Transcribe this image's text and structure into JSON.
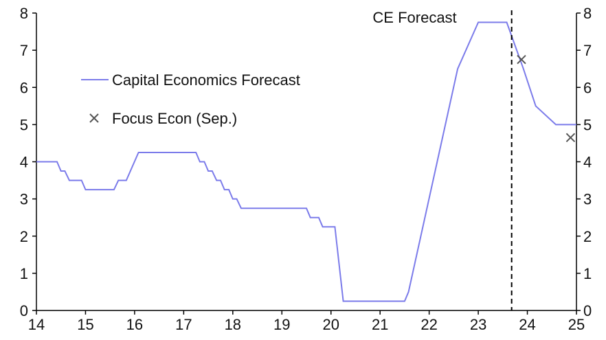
{
  "chart_data": {
    "type": "line",
    "x_range": [
      14,
      25
    ],
    "ylim": [
      0,
      8
    ],
    "x_ticks": [
      "14",
      "15",
      "16",
      "17",
      "18",
      "19",
      "20",
      "21",
      "22",
      "23",
      "24",
      "25"
    ],
    "y_ticks": [
      "0",
      "1",
      "2",
      "3",
      "4",
      "5",
      "6",
      "7",
      "8"
    ],
    "y_axis_right": true,
    "grid": false,
    "legend_position": "upper-left",
    "forecast_marker": {
      "x": 23.68,
      "label": "CE Forecast"
    },
    "series": [
      {
        "name": "Capital Economics Forecast",
        "style": "line",
        "color": "#7b7bea",
        "x": [
          14.0,
          14.42,
          14.5,
          14.58,
          14.67,
          14.92,
          15.0,
          15.58,
          15.67,
          15.83,
          16.08,
          17.25,
          17.33,
          17.42,
          17.5,
          17.58,
          17.67,
          17.75,
          17.83,
          17.92,
          18.0,
          18.08,
          18.17,
          19.5,
          19.58,
          19.75,
          19.83,
          20.08,
          20.25,
          21.5,
          21.58,
          22.58,
          23.0,
          23.58,
          23.92,
          24.17,
          24.58,
          24.83,
          25.0
        ],
        "y": [
          4.0,
          4.0,
          3.75,
          3.75,
          3.5,
          3.5,
          3.25,
          3.25,
          3.5,
          3.5,
          4.25,
          4.25,
          4.0,
          4.0,
          3.75,
          3.75,
          3.5,
          3.5,
          3.25,
          3.25,
          3.0,
          3.0,
          2.75,
          2.75,
          2.5,
          2.5,
          2.25,
          2.25,
          0.25,
          0.25,
          0.5,
          6.5,
          7.75,
          7.75,
          6.5,
          5.5,
          5.0,
          5.0,
          5.0
        ]
      },
      {
        "name": "Focus Econ (Sep.)",
        "style": "marker-x",
        "color": "#555555",
        "x": [
          23.88,
          24.88
        ],
        "y": [
          6.75,
          4.65
        ]
      }
    ]
  }
}
